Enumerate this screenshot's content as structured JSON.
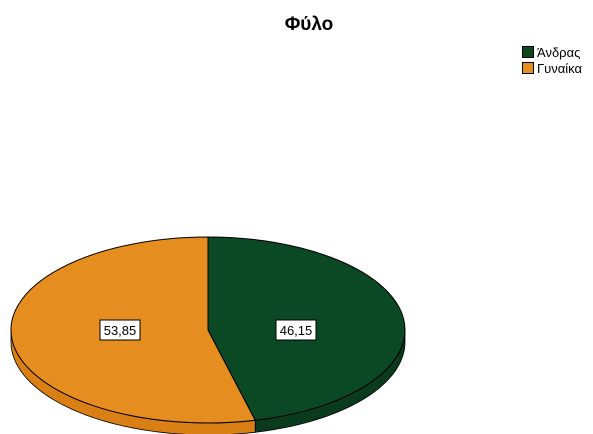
{
  "chart_data": {
    "type": "pie",
    "title": "Φύλο",
    "categories": [
      "Άνδρας",
      "Γυναίκα"
    ],
    "values": [
      46.15,
      53.85
    ],
    "value_labels": [
      "46,15",
      "53,85"
    ],
    "colors": [
      "#0b4824",
      "#e58d1e"
    ],
    "side_colors": [
      "#0a3b1d",
      "#d97f14"
    ],
    "legend_position": "top-right",
    "style": "3d"
  }
}
